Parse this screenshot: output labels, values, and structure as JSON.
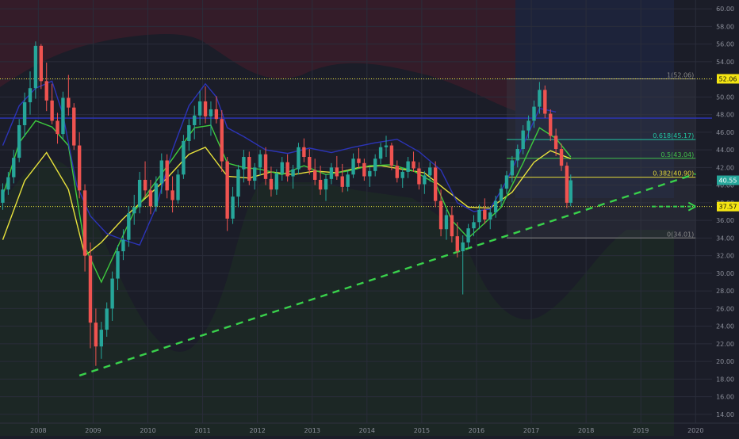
{
  "chart_data": {
    "type": "candlestick",
    "title": "",
    "x_labels": [
      "2008",
      "2009",
      "2010",
      "2011",
      "2012",
      "2013",
      "2014",
      "2015",
      "2016",
      "2017",
      "2018",
      "2019",
      "2020"
    ],
    "y_ticks": [
      "14.00",
      "16.00",
      "18.00",
      "20.00",
      "22.00",
      "24.00",
      "26.00",
      "28.00",
      "30.00",
      "32.00",
      "34.00",
      "36.00",
      "38.00",
      "40.00",
      "42.00",
      "44.00",
      "46.00",
      "48.00",
      "50.00",
      "52.00",
      "54.00",
      "56.00",
      "58.00",
      "60.00"
    ],
    "ylim": [
      13,
      61
    ],
    "xlim": [
      2007.3,
      2020.3
    ],
    "last_price": "40.55",
    "price_badges": [
      {
        "label": "52.06",
        "value": 52.06,
        "color": "#f5e612"
      },
      {
        "label": "37.57",
        "value": 37.57,
        "color": "#f5e612"
      }
    ],
    "horizontal_lines": [
      {
        "value": 52.06,
        "color": "#e8e23c",
        "style": "dotted"
      },
      {
        "value": 37.57,
        "color": "#e8e23c",
        "style": "dotted"
      },
      {
        "value": 47.6,
        "color": "#2b33a8",
        "style": "solid"
      }
    ],
    "fibonacci": {
      "x_start": 2016.55,
      "x_end": 2020.0,
      "levels": [
        {
          "label": "1(52.06)",
          "value": 52.06,
          "color": "#888888"
        },
        {
          "label": "0.618(45.17)",
          "value": 45.17,
          "color": "#22c7a3"
        },
        {
          "label": "0.5(43.04)",
          "value": 43.04,
          "color": "#41c24a"
        },
        {
          "label": "0.382(40.90)",
          "value": 40.9,
          "color": "#e3d93a"
        },
        {
          "label": "0(34.01)",
          "value": 34.01,
          "color": "#888888"
        }
      ]
    },
    "trendline": {
      "x1": 2008.75,
      "y1": 18.4,
      "x2": 2017.85,
      "y2": 36.9,
      "color": "#39d14b",
      "style": "dashed",
      "extend_to_x": 2020.0
    },
    "support_arrow": {
      "x1": 2019.2,
      "x2": 2020.0,
      "y": 37.57,
      "color": "#39d14b"
    },
    "candles": [
      [
        2007.35,
        38.0,
        40.2,
        37.2,
        39.5
      ],
      [
        2007.45,
        39.5,
        41.5,
        38.9,
        40.9
      ],
      [
        2007.55,
        40.9,
        44.0,
        40.2,
        43.1
      ],
      [
        2007.65,
        43.1,
        47.5,
        42.6,
        46.8
      ],
      [
        2007.75,
        46.8,
        50.5,
        45.5,
        49.4
      ],
      [
        2007.85,
        49.4,
        52.9,
        48.0,
        51.0
      ],
      [
        2007.95,
        51.0,
        56.3,
        49.8,
        55.8
      ],
      [
        2008.05,
        55.8,
        56.0,
        50.9,
        51.8
      ],
      [
        2008.15,
        51.8,
        53.9,
        48.4,
        49.6
      ],
      [
        2008.25,
        49.6,
        51.5,
        46.9,
        47.3
      ],
      [
        2008.35,
        47.3,
        48.2,
        44.7,
        45.8
      ],
      [
        2008.45,
        45.8,
        50.6,
        45.2,
        49.9
      ],
      [
        2008.55,
        49.9,
        52.5,
        47.9,
        48.8
      ],
      [
        2008.65,
        48.8,
        49.3,
        44.0,
        44.5
      ],
      [
        2008.75,
        44.5,
        46.0,
        38.5,
        39.4
      ],
      [
        2008.85,
        39.4,
        40.1,
        30.2,
        32.0
      ],
      [
        2008.95,
        32.0,
        33.5,
        21.5,
        24.4
      ],
      [
        2009.05,
        24.4,
        26.0,
        19.5,
        21.7
      ],
      [
        2009.15,
        21.7,
        24.5,
        20.3,
        23.6
      ],
      [
        2009.25,
        23.6,
        26.7,
        22.8,
        26.0
      ],
      [
        2009.35,
        26.0,
        30.2,
        24.6,
        29.4
      ],
      [
        2009.45,
        29.4,
        33.2,
        28.1,
        32.5
      ],
      [
        2009.55,
        32.5,
        35.0,
        31.5,
        33.8
      ],
      [
        2009.65,
        33.8,
        37.6,
        33.0,
        36.8
      ],
      [
        2009.75,
        36.8,
        38.9,
        35.5,
        37.5
      ],
      [
        2009.85,
        37.5,
        41.5,
        36.8,
        40.6
      ],
      [
        2009.95,
        40.6,
        42.7,
        38.6,
        39.4
      ],
      [
        2010.05,
        39.4,
        40.6,
        36.7,
        37.6
      ],
      [
        2010.15,
        37.6,
        41.0,
        37.0,
        40.2
      ],
      [
        2010.25,
        40.2,
        43.6,
        39.0,
        42.8
      ],
      [
        2010.35,
        42.8,
        43.5,
        38.5,
        39.4
      ],
      [
        2010.45,
        39.4,
        41.0,
        36.9,
        38.3
      ],
      [
        2010.55,
        38.3,
        41.8,
        37.9,
        41.2
      ],
      [
        2010.65,
        41.2,
        45.7,
        40.7,
        45.0
      ],
      [
        2010.75,
        45.0,
        47.5,
        43.9,
        46.8
      ],
      [
        2010.85,
        46.8,
        49.0,
        45.2,
        47.9
      ],
      [
        2010.95,
        47.9,
        50.7,
        46.8,
        49.5
      ],
      [
        2011.05,
        49.5,
        51.2,
        47.0,
        47.8
      ],
      [
        2011.15,
        47.8,
        49.5,
        45.6,
        48.6
      ],
      [
        2011.25,
        48.6,
        50.1,
        47.0,
        47.5
      ],
      [
        2011.35,
        47.5,
        48.5,
        41.5,
        42.7
      ],
      [
        2011.45,
        42.7,
        43.2,
        34.8,
        36.2
      ],
      [
        2011.55,
        36.2,
        39.8,
        35.6,
        38.7
      ],
      [
        2011.65,
        38.7,
        42.3,
        37.5,
        41.8
      ],
      [
        2011.75,
        41.8,
        44.0,
        40.3,
        43.2
      ],
      [
        2011.85,
        43.2,
        43.8,
        40.0,
        40.5
      ],
      [
        2011.95,
        40.5,
        42.5,
        39.5,
        42.0
      ],
      [
        2012.05,
        42.0,
        44.0,
        41.1,
        43.5
      ],
      [
        2012.15,
        43.5,
        44.3,
        40.0,
        40.7
      ],
      [
        2012.25,
        40.7,
        42.1,
        38.7,
        39.5
      ],
      [
        2012.35,
        39.5,
        41.8,
        38.9,
        41.3
      ],
      [
        2012.45,
        41.3,
        43.2,
        40.5,
        42.6
      ],
      [
        2012.55,
        42.6,
        43.5,
        40.4,
        41.0
      ],
      [
        2012.65,
        41.0,
        42.3,
        39.6,
        41.8
      ],
      [
        2012.75,
        41.8,
        44.8,
        41.2,
        44.3
      ],
      [
        2012.85,
        44.3,
        45.3,
        42.6,
        43.2
      ],
      [
        2012.95,
        43.2,
        44.1,
        41.2,
        41.7
      ],
      [
        2013.05,
        41.7,
        43.0,
        40.0,
        40.6
      ],
      [
        2013.15,
        40.6,
        42.2,
        38.9,
        39.5
      ],
      [
        2013.25,
        39.5,
        41.2,
        38.2,
        40.7
      ],
      [
        2013.35,
        40.7,
        42.5,
        40.1,
        42.0
      ],
      [
        2013.45,
        42.0,
        43.3,
        40.6,
        41.0
      ],
      [
        2013.55,
        41.0,
        42.4,
        39.2,
        39.8
      ],
      [
        2013.65,
        39.8,
        41.7,
        39.3,
        41.2
      ],
      [
        2013.75,
        41.2,
        43.6,
        40.8,
        43.0
      ],
      [
        2013.85,
        43.0,
        44.2,
        41.9,
        42.5
      ],
      [
        2013.95,
        42.5,
        43.0,
        40.5,
        41.0
      ],
      [
        2014.05,
        41.0,
        42.1,
        39.8,
        41.6
      ],
      [
        2014.15,
        41.6,
        43.5,
        41.0,
        43.0
      ],
      [
        2014.25,
        43.0,
        44.8,
        42.4,
        44.3
      ],
      [
        2014.35,
        44.3,
        45.6,
        43.2,
        44.5
      ],
      [
        2014.45,
        44.5,
        44.8,
        41.7,
        42.2
      ],
      [
        2014.55,
        42.2,
        42.8,
        40.3,
        40.8
      ],
      [
        2014.65,
        40.8,
        42.0,
        39.7,
        41.5
      ],
      [
        2014.75,
        41.5,
        43.2,
        40.8,
        42.7
      ],
      [
        2014.85,
        42.7,
        43.8,
        41.5,
        41.9
      ],
      [
        2014.95,
        41.9,
        42.6,
        39.5,
        40.1
      ],
      [
        2015.05,
        40.1,
        41.6,
        39.0,
        41.1
      ],
      [
        2015.15,
        41.1,
        42.6,
        40.4,
        42.0
      ],
      [
        2015.25,
        42.0,
        42.7,
        37.5,
        38.2
      ],
      [
        2015.35,
        38.2,
        39.5,
        34.2,
        35.0
      ],
      [
        2015.45,
        35.0,
        37.2,
        33.8,
        36.6
      ],
      [
        2015.55,
        36.6,
        37.6,
        33.5,
        34.2
      ],
      [
        2015.65,
        34.2,
        35.8,
        31.8,
        32.5
      ],
      [
        2015.75,
        32.5,
        34.3,
        27.6,
        33.5
      ],
      [
        2015.85,
        33.5,
        35.6,
        32.8,
        35.1
      ],
      [
        2015.95,
        35.1,
        36.6,
        34.2,
        35.8
      ],
      [
        2016.05,
        35.8,
        37.8,
        35.0,
        37.2
      ],
      [
        2016.15,
        37.2,
        38.5,
        35.6,
        36.1
      ],
      [
        2016.25,
        36.1,
        37.4,
        35.0,
        36.9
      ],
      [
        2016.35,
        36.9,
        38.8,
        36.3,
        38.2
      ],
      [
        2016.45,
        38.2,
        40.1,
        37.6,
        39.6
      ],
      [
        2016.55,
        39.6,
        41.6,
        39.0,
        41.1
      ],
      [
        2016.65,
        41.1,
        43.3,
        40.3,
        42.8
      ],
      [
        2016.75,
        42.8,
        44.6,
        42.0,
        44.1
      ],
      [
        2016.85,
        44.1,
        46.8,
        43.5,
        46.2
      ],
      [
        2016.95,
        46.2,
        47.9,
        45.3,
        47.3
      ],
      [
        2017.05,
        47.3,
        49.6,
        46.5,
        48.9
      ],
      [
        2017.15,
        48.9,
        51.7,
        48.1,
        50.8
      ],
      [
        2017.25,
        50.8,
        51.3,
        47.6,
        48.1
      ],
      [
        2017.35,
        48.1,
        48.6,
        45.0,
        45.6
      ],
      [
        2017.45,
        45.6,
        46.4,
        43.3,
        44.1
      ],
      [
        2017.55,
        44.1,
        44.7,
        41.6,
        42.2
      ],
      [
        2017.65,
        42.2,
        42.6,
        37.4,
        38.0
      ],
      [
        2017.72,
        38.0,
        41.2,
        37.6,
        40.55
      ]
    ],
    "series": [
      {
        "name": "",
        "color": "#e8e23c",
        "points": [
          [
            2007.35,
            33.8
          ],
          [
            2007.75,
            40.5
          ],
          [
            2008.15,
            43.7
          ],
          [
            2008.55,
            39.5
          ],
          [
            2008.85,
            32.0
          ],
          [
            2009.15,
            33.5
          ],
          [
            2009.55,
            36.2
          ],
          [
            2009.95,
            38.5
          ],
          [
            2010.35,
            40.8
          ],
          [
            2010.75,
            43.5
          ],
          [
            2011.05,
            44.3
          ],
          [
            2011.45,
            41.0
          ],
          [
            2011.85,
            40.8
          ],
          [
            2012.25,
            41.5
          ],
          [
            2012.65,
            41.2
          ],
          [
            2013.05,
            41.6
          ],
          [
            2013.45,
            41.4
          ],
          [
            2013.85,
            42.0
          ],
          [
            2014.25,
            42.2
          ],
          [
            2014.65,
            41.8
          ],
          [
            2015.05,
            41.4
          ],
          [
            2015.45,
            39.4
          ],
          [
            2015.85,
            37.5
          ],
          [
            2016.25,
            37.4
          ],
          [
            2016.65,
            39.2
          ],
          [
            2017.05,
            42.6
          ],
          [
            2017.35,
            43.9
          ],
          [
            2017.72,
            43.0
          ]
        ]
      },
      {
        "name": "",
        "color": "#3ecb3e",
        "points": [
          [
            2007.35,
            38.8
          ],
          [
            2007.65,
            44.8
          ],
          [
            2007.95,
            47.3
          ],
          [
            2008.25,
            46.6
          ],
          [
            2008.55,
            44.5
          ],
          [
            2008.85,
            33.0
          ],
          [
            2009.15,
            29.0
          ],
          [
            2009.45,
            33.0
          ],
          [
            2009.75,
            37.0
          ],
          [
            2010.05,
            39.6
          ],
          [
            2010.45,
            43.0
          ],
          [
            2010.85,
            46.5
          ],
          [
            2011.15,
            46.8
          ],
          [
            2011.45,
            42.5
          ],
          [
            2011.75,
            42.0
          ],
          [
            2012.05,
            41.8
          ],
          [
            2012.45,
            41.2
          ],
          [
            2012.85,
            42.2
          ],
          [
            2013.25,
            41.2
          ],
          [
            2013.65,
            41.6
          ],
          [
            2014.05,
            42.2
          ],
          [
            2014.45,
            42.3
          ],
          [
            2014.85,
            41.6
          ],
          [
            2015.25,
            40.2
          ],
          [
            2015.55,
            36.0
          ],
          [
            2015.85,
            34.0
          ],
          [
            2016.15,
            35.7
          ],
          [
            2016.45,
            37.5
          ],
          [
            2016.85,
            42.5
          ],
          [
            2017.15,
            46.5
          ],
          [
            2017.45,
            45.3
          ],
          [
            2017.72,
            43.2
          ]
        ]
      },
      {
        "name": "",
        "color": "#2c34b8",
        "points": [
          [
            2007.35,
            44.5
          ],
          [
            2007.65,
            49.0
          ],
          [
            2007.95,
            51.0
          ],
          [
            2008.25,
            51.8
          ],
          [
            2008.45,
            48.0
          ],
          [
            2008.7,
            40.0
          ],
          [
            2008.95,
            36.5
          ],
          [
            2009.25,
            34.5
          ],
          [
            2009.55,
            33.8
          ],
          [
            2009.85,
            33.2
          ],
          [
            2010.15,
            37.5
          ],
          [
            2010.45,
            44.0
          ],
          [
            2010.75,
            49.0
          ],
          [
            2011.05,
            51.5
          ],
          [
            2011.25,
            50.0
          ],
          [
            2011.45,
            46.5
          ],
          [
            2011.75,
            45.5
          ],
          [
            2012.15,
            44.0
          ],
          [
            2012.55,
            43.6
          ],
          [
            2012.95,
            44.2
          ],
          [
            2013.35,
            43.7
          ],
          [
            2013.75,
            44.3
          ],
          [
            2014.15,
            44.8
          ],
          [
            2014.55,
            45.2
          ],
          [
            2014.95,
            43.8
          ],
          [
            2015.35,
            41.7
          ],
          [
            2015.65,
            38.0
          ],
          [
            2015.95,
            37.0
          ],
          [
            2016.25,
            37.3
          ],
          [
            2016.55,
            40.5
          ],
          [
            2016.85,
            44.5
          ],
          [
            2017.15,
            48.7
          ],
          [
            2017.45,
            48.3
          ]
        ]
      }
    ]
  }
}
